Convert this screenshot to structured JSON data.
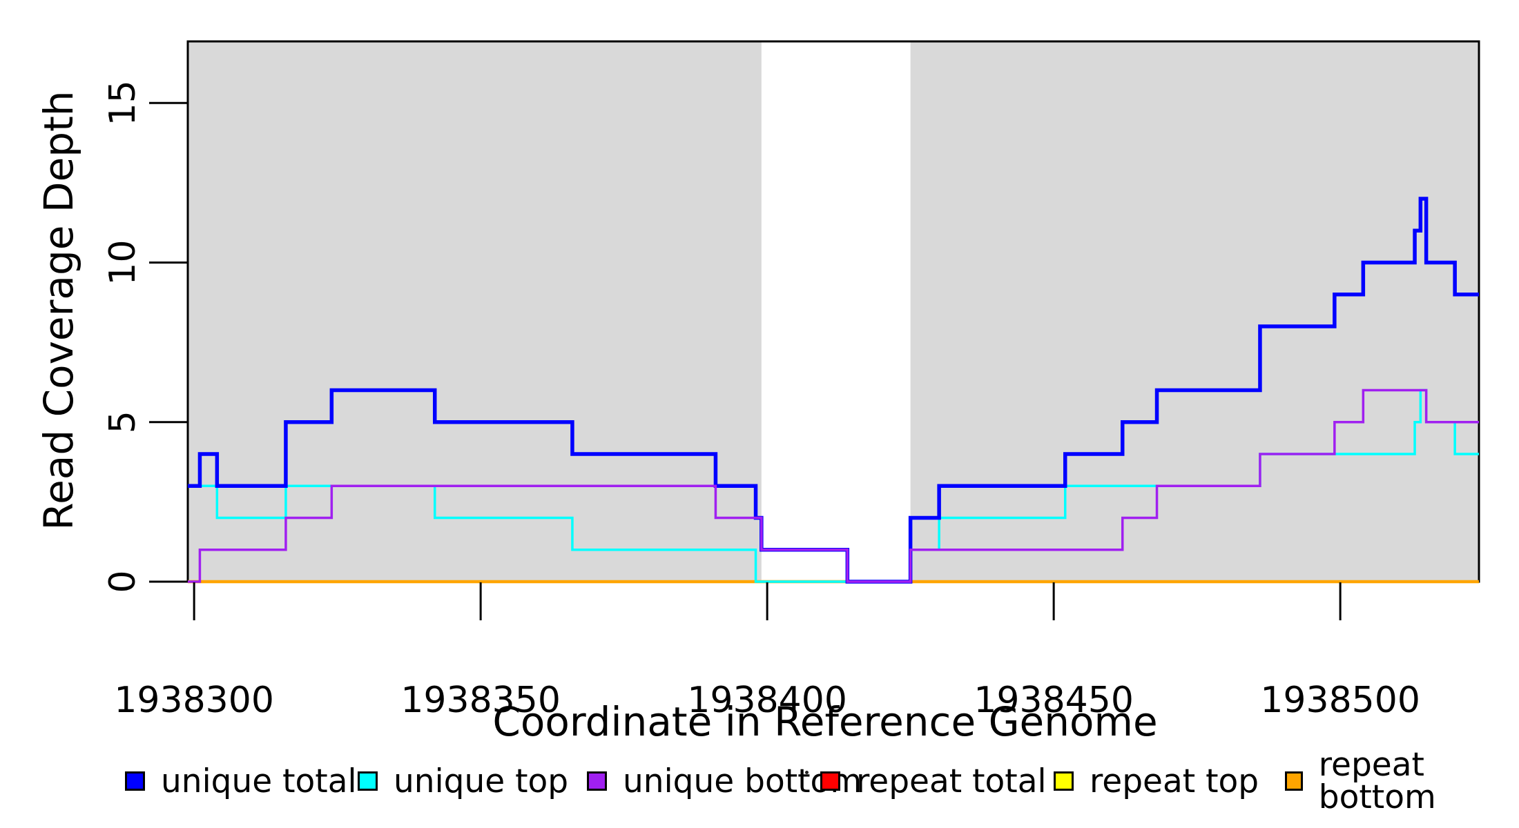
{
  "figure": {
    "background": "#FFFFFF",
    "plot_background": "#FFFFFF"
  },
  "chart_data": {
    "type": "line",
    "subtype": "step-coverage",
    "title": "",
    "xlabel": "Coordinate in Reference Genome",
    "ylabel": "Read Coverage Depth",
    "xlim": [
      1938298.9,
      1938524.2
    ],
    "ylim": [
      0,
      16.93
    ],
    "x_ticks": [
      1938300,
      1938350,
      1938400,
      1938450,
      1938500
    ],
    "y_ticks": [
      0,
      5,
      10,
      15
    ],
    "grid": false,
    "shaded_regions": {
      "color": "#D9D9D9",
      "ranges": [
        [
          1938298.9,
          1938399
        ],
        [
          1938425,
          1938524.2
        ]
      ]
    },
    "draw_order": [
      3,
      4,
      5,
      1,
      0,
      2
    ],
    "series": [
      {
        "name": "unique total",
        "color": "#0000FF",
        "width": 5.5,
        "steps": [
          [
            1938299,
            3
          ],
          [
            1938301,
            4
          ],
          [
            1938304,
            3
          ],
          [
            1938316,
            5
          ],
          [
            1938324,
            6
          ],
          [
            1938342,
            5
          ],
          [
            1938366,
            4
          ],
          [
            1938391,
            3
          ],
          [
            1938398,
            2
          ],
          [
            1938399,
            1
          ],
          [
            1938414,
            0
          ],
          [
            1938425,
            2
          ],
          [
            1938430,
            3
          ],
          [
            1938452,
            4
          ],
          [
            1938462,
            5
          ],
          [
            1938468,
            6
          ],
          [
            1938486,
            8
          ],
          [
            1938499,
            9
          ],
          [
            1938504,
            10
          ],
          [
            1938513,
            11
          ],
          [
            1938514,
            12
          ],
          [
            1938515,
            10
          ],
          [
            1938520,
            9
          ]
        ]
      },
      {
        "name": "unique top",
        "color": "#00FFFF",
        "width": 3.5,
        "steps": [
          [
            1938299,
            3
          ],
          [
            1938304,
            2
          ],
          [
            1938316,
            3
          ],
          [
            1938342,
            2
          ],
          [
            1938366,
            1
          ],
          [
            1938398,
            0
          ],
          [
            1938425,
            1
          ],
          [
            1938430,
            2
          ],
          [
            1938452,
            3
          ],
          [
            1938486,
            4
          ],
          [
            1938513,
            5
          ],
          [
            1938514,
            6
          ],
          [
            1938515,
            5
          ],
          [
            1938520,
            4
          ]
        ]
      },
      {
        "name": "unique bottom",
        "color": "#A020F0",
        "width": 3.5,
        "steps": [
          [
            1938299,
            0
          ],
          [
            1938301,
            1
          ],
          [
            1938316,
            2
          ],
          [
            1938324,
            3
          ],
          [
            1938391,
            2
          ],
          [
            1938399,
            1
          ],
          [
            1938414,
            0
          ],
          [
            1938425,
            1
          ],
          [
            1938462,
            2
          ],
          [
            1938468,
            3
          ],
          [
            1938486,
            4
          ],
          [
            1938499,
            5
          ],
          [
            1938504,
            6
          ],
          [
            1938515,
            5
          ]
        ]
      },
      {
        "name": "repeat total",
        "color": "#FF0000",
        "width": 3,
        "steps": [
          [
            1938299,
            0
          ]
        ]
      },
      {
        "name": "repeat top",
        "color": "#FFFF00",
        "width": 3,
        "steps": [
          [
            1938299,
            0
          ]
        ]
      },
      {
        "name": "repeat bottom",
        "color": "#FFA500",
        "width": 4.5,
        "steps": [
          [
            1938299,
            0
          ]
        ]
      }
    ]
  },
  "axes": {
    "x": {
      "title": "Coordinate in Reference Genome"
    },
    "y": {
      "title": "Read Coverage Depth"
    }
  },
  "legend": {
    "items": [
      {
        "label": "unique total",
        "color": "#0000FF"
      },
      {
        "label": "unique top",
        "color": "#00FFFF"
      },
      {
        "label": "unique bottom",
        "color": "#A020F0"
      },
      {
        "label": "repeat total",
        "color": "#FF0000"
      },
      {
        "label": "repeat top",
        "color": "#FFFF00"
      },
      {
        "label": "repeat bottom",
        "color": "#FFA500"
      }
    ]
  }
}
